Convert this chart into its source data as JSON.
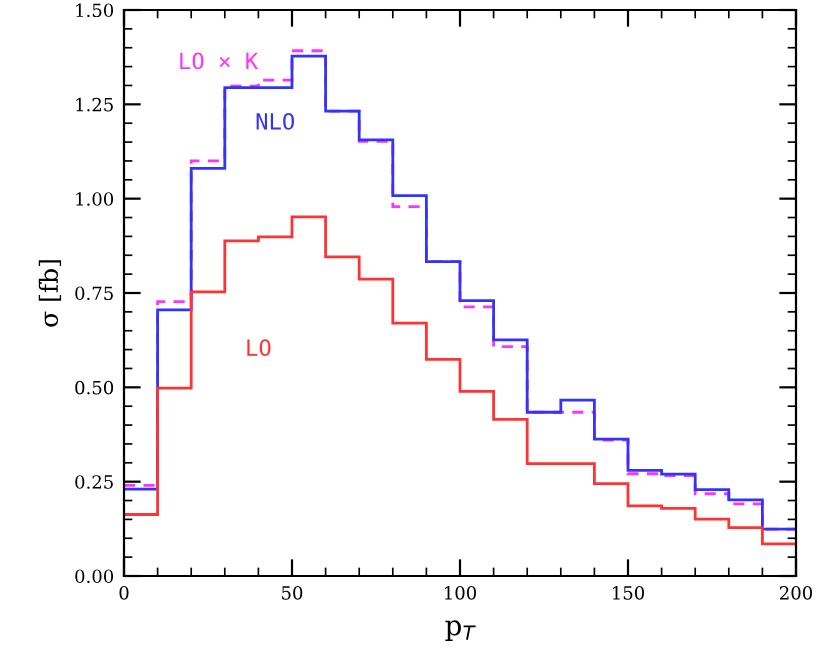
{
  "chart_data": {
    "type": "histogram",
    "xlabel": "p$_{T}$",
    "ylabel": "σ [fb]",
    "bins": [
      0,
      10,
      20,
      30,
      40,
      50,
      60,
      70,
      80,
      90,
      100,
      110,
      120,
      130,
      140,
      150,
      160,
      170,
      180,
      190,
      200
    ],
    "series": [
      {
        "name": "LO × K",
        "color": "#ff33ff",
        "line_style": "dashed",
        "values": [
          0.24,
          0.727,
          1.1,
          1.298,
          1.314,
          1.392,
          1.232,
          1.152,
          0.979,
          0.833,
          0.713,
          0.608,
          0.434,
          0.434,
          0.36,
          0.271,
          0.266,
          0.218,
          0.191,
          0.124
        ]
      },
      {
        "name": "NLO",
        "color": "#3333ff",
        "line_style": "solid",
        "values": [
          0.23,
          0.705,
          1.08,
          1.294,
          1.294,
          1.378,
          1.232,
          1.156,
          1.008,
          0.833,
          0.73,
          0.626,
          0.434,
          0.466,
          0.363,
          0.28,
          0.27,
          0.229,
          0.202,
          0.124
        ]
      },
      {
        "name": "LO",
        "color": "#ff3333",
        "line_style": "solid",
        "values": [
          0.163,
          0.498,
          0.753,
          0.888,
          0.899,
          0.952,
          0.846,
          0.787,
          0.67,
          0.574,
          0.489,
          0.415,
          0.298,
          0.298,
          0.245,
          0.186,
          0.179,
          0.151,
          0.128,
          0.085
        ]
      }
    ],
    "xlim": [
      0,
      200
    ],
    "ylim": [
      0,
      1.5
    ],
    "xticks": [
      0,
      50,
      100,
      150,
      200
    ],
    "yticks": [
      {
        "value": 0,
        "label": "0.00"
      },
      {
        "value": 0.25,
        "label": "0.25"
      },
      {
        "value": 0.5,
        "label": "0.50"
      },
      {
        "value": 0.75,
        "label": "0.75"
      },
      {
        "value": 1,
        "label": "1.00"
      },
      {
        "value": 1.25,
        "label": "1.25"
      },
      {
        "value": 1.5,
        "label": "1.50"
      }
    ],
    "grid": false,
    "legend": false
  }
}
